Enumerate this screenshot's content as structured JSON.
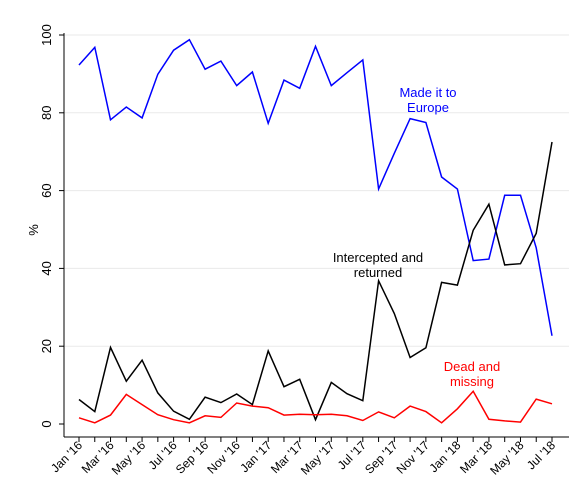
{
  "chart_data": {
    "type": "line",
    "ylabel": "%",
    "xlabel": "",
    "ylim": [
      0,
      100
    ],
    "yticks": [
      0,
      20,
      40,
      60,
      80,
      100
    ],
    "grid": "horizontal",
    "x": [
      "Jan '16",
      "Feb '16",
      "Mar '16",
      "Apr '16",
      "May '16",
      "Jun '16",
      "Jul '16",
      "Aug '16",
      "Sep '16",
      "Oct '16",
      "Nov '16",
      "Dec '16",
      "Jan '17",
      "Feb '17",
      "Mar '17",
      "Apr '17",
      "May '17",
      "Jun '17",
      "Jul '17",
      "Aug '17",
      "Sep '17",
      "Oct '17",
      "Nov '17",
      "Dec '17",
      "Jan '18",
      "Feb '18",
      "Mar '18",
      "Apr '18",
      "May '18",
      "Jun '18",
      "Jul '18"
    ],
    "xtick_labels": [
      "Jan '16",
      "Mar '16",
      "May '16",
      "Jul '16",
      "Sep '16",
      "Nov '16",
      "Jan '17",
      "Mar '17",
      "May '17",
      "Jul '17",
      "Sep '17",
      "Nov '17",
      "Jan '18",
      "Mar '18",
      "May '18",
      "Jul '18"
    ],
    "series": [
      {
        "name": "Made it to Europe",
        "label_lines": [
          "Made it to",
          "Europe"
        ],
        "color": "#0000ff",
        "values": [
          92.3,
          96.8,
          78.2,
          81.5,
          78.7,
          89.9,
          96.1,
          98.8,
          91.2,
          93.3,
          87.0,
          90.5,
          77.3,
          88.4,
          86.3,
          97.1,
          87.0,
          90.3,
          93.6,
          60.4,
          69.6,
          78.5,
          77.5,
          63.5,
          60.4,
          42.0,
          42.4,
          58.8,
          58.8,
          45.3,
          22.7
        ]
      },
      {
        "name": "Intercepted and returned",
        "label_lines": [
          "Intercepted and",
          "returned"
        ],
        "color": "#000000",
        "values": [
          6.3,
          3.2,
          19.7,
          11.0,
          16.4,
          8.0,
          3.3,
          1.2,
          6.9,
          5.5,
          7.7,
          5.0,
          18.8,
          9.6,
          11.5,
          1.1,
          10.7,
          7.8,
          6.0,
          36.8,
          28.4,
          17.1,
          19.6,
          36.4,
          35.7,
          49.8,
          56.5,
          40.9,
          41.2,
          49.0,
          72.5
        ]
      },
      {
        "name": "Dead and missing",
        "label_lines": [
          "Dead and",
          "missing"
        ],
        "color": "#ff0000",
        "values": [
          1.6,
          0.3,
          2.3,
          7.6,
          5.0,
          2.4,
          1.1,
          0.3,
          2.1,
          1.7,
          5.4,
          4.6,
          4.2,
          2.3,
          2.5,
          2.4,
          2.5,
          2.1,
          0.9,
          3.1,
          1.6,
          4.6,
          3.2,
          0.3,
          3.9,
          8.4,
          1.2,
          0.8,
          0.5,
          6.4,
          5.2
        ]
      }
    ]
  }
}
